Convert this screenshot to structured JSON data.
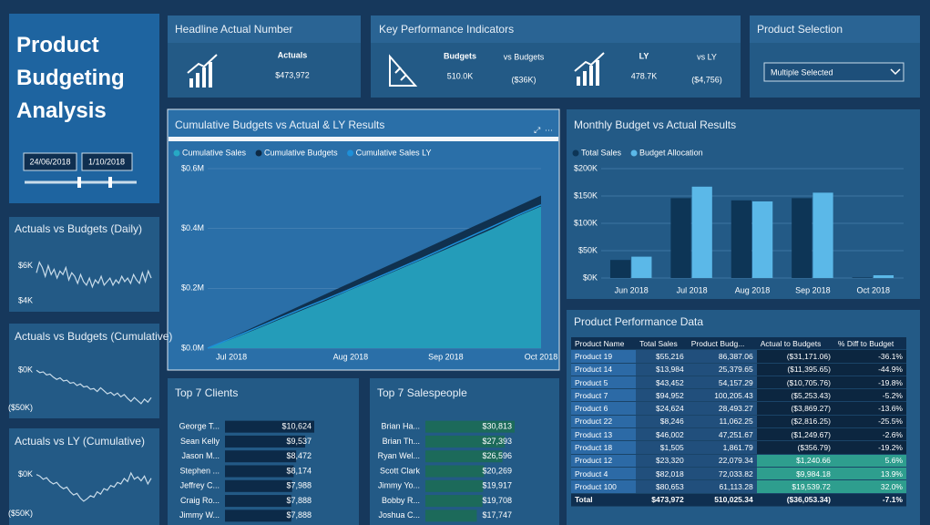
{
  "title": "Product Budgeting Analysis",
  "date_range": [
    "24/06/2018",
    "1/10/2018"
  ],
  "headline": {
    "title": "Headline Actual Number",
    "label": "Actuals",
    "value": "$473,972"
  },
  "kpi": {
    "title": "Key Performance Indicators",
    "budgets_label": "Budgets",
    "budgets_value": "510.0K",
    "vs_budgets_label": "vs Budgets",
    "vs_budgets_value": "($36K)",
    "ly_label": "LY",
    "ly_value": "478.7K",
    "vs_ly_label": "vs LY",
    "vs_ly_value": "($4,756)"
  },
  "product_selection": {
    "title": "Product Selection",
    "value": "Multiple Selected"
  },
  "chart_data": [
    {
      "type": "line",
      "title": "Actuals vs Budgets (Daily)",
      "color": "#c9dcea",
      "values": [
        5600,
        6200,
        5900,
        5400,
        6000,
        5500,
        5800,
        5300,
        5700,
        5500,
        5900,
        5200,
        5600,
        5400,
        5000,
        5500,
        5100,
        4900,
        5300,
        4800,
        5200,
        5000,
        5400,
        4900,
        5100,
        5300,
        4900,
        5200,
        5000,
        5400,
        5100,
        5300,
        5000,
        5500,
        5200,
        5000,
        5600,
        5100,
        5700,
        5300
      ],
      "ylim": [
        3700,
        6600
      ],
      "yticks": [
        {
          "value": 6000,
          "label": "$6K"
        },
        {
          "value": 4000,
          "label": "$4K"
        }
      ]
    },
    {
      "type": "line",
      "title": "Actuals vs Budgets (Cumulative)",
      "color": "#c9dcea",
      "values": [
        0,
        -3000,
        -2000,
        -6000,
        -5000,
        -9000,
        -12000,
        -10000,
        -14000,
        -13000,
        -17000,
        -16000,
        -20000,
        -18000,
        -22000,
        -21000,
        -25000,
        -24000,
        -28000,
        -23000,
        -27000,
        -31000,
        -29000,
        -33000,
        -30000,
        -35000,
        -32000,
        -37000,
        -41000,
        -36000,
        -40000,
        -44000,
        -38000,
        -42000,
        -36053
      ],
      "ylim": [
        -55000,
        10000
      ],
      "yticks": [
        {
          "value": 0,
          "label": "$0K"
        },
        {
          "value": -50000,
          "label": "($50K)"
        }
      ]
    },
    {
      "type": "line",
      "title": "Actuals vs LY (Cumulative)",
      "color": "#c9dcea",
      "values": [
        0,
        -2000,
        -6000,
        -4000,
        -9000,
        -12000,
        -10000,
        -15000,
        -18000,
        -16000,
        -22000,
        -26000,
        -24000,
        -30000,
        -34000,
        -31000,
        -27000,
        -29000,
        -22000,
        -25000,
        -18000,
        -20000,
        -14000,
        -16000,
        -10000,
        -12000,
        -5000,
        -9000,
        2000,
        -6000,
        -3000,
        -8000,
        -2000,
        -12000,
        -4756
      ],
      "ylim": [
        -55000,
        10000
      ],
      "yticks": [
        {
          "value": 0,
          "label": "$0K"
        },
        {
          "value": -50000,
          "label": "($50K)"
        }
      ]
    },
    {
      "type": "area",
      "title": "Cumulative Budgets vs Actual & LY Results",
      "categories": [
        null,
        "Jul 2018",
        null,
        null,
        null,
        null,
        "Aug 2018",
        null,
        null,
        null,
        "Sep 2018",
        null,
        null,
        null,
        "Oct 2018"
      ],
      "series": [
        {
          "name": "Cumulative Sales",
          "color": "#27a9c4",
          "area": true,
          "values": [
            0,
            30000,
            62000,
            95000,
            128000,
            160000,
            195000,
            228000,
            262000,
            296000,
            330000,
            365000,
            400000,
            440000,
            473972
          ]
        },
        {
          "name": "Cumulative Budgets",
          "color": "#0d2a45",
          "area": true,
          "values": [
            0,
            36400,
            72900,
            109300,
            145700,
            182200,
            218600,
            255000,
            291400,
            327900,
            364300,
            400700,
            437200,
            473600,
            510025
          ]
        },
        {
          "name": "Cumulative Sales LY",
          "color": "#1e90d8",
          "area": false,
          "values": [
            0,
            33000,
            66000,
            100000,
            133000,
            165000,
            198000,
            232000,
            266000,
            300000,
            336000,
            372000,
            408000,
            444000,
            478700
          ]
        }
      ],
      "ylim": [
        0,
        600000
      ],
      "yticks": [
        {
          "value": 0,
          "label": "$0.0M"
        },
        {
          "value": 200000,
          "label": "$0.2M"
        },
        {
          "value": 400000,
          "label": "$0.4M"
        },
        {
          "value": 600000,
          "label": "$0.6M"
        }
      ],
      "grid": true
    },
    {
      "type": "bar",
      "title": "Monthly Budget vs Actual Results",
      "categories": [
        "Jun 2018",
        "Jul 2018",
        "Aug 2018",
        "Sep 2018",
        "Oct 2018"
      ],
      "series": [
        {
          "name": "Total Sales",
          "color": "#0d3556",
          "values": [
            33000,
            146000,
            142000,
            146000,
            1000
          ]
        },
        {
          "name": "Budget Allocation",
          "color": "#5bb8e8",
          "values": [
            39000,
            167000,
            140000,
            156000,
            5000
          ]
        }
      ],
      "ylim": [
        0,
        200000
      ],
      "yticks": [
        {
          "value": 0,
          "label": "$0K"
        },
        {
          "value": 50000,
          "label": "$50K"
        },
        {
          "value": 100000,
          "label": "$100K"
        },
        {
          "value": 150000,
          "label": "$150K"
        },
        {
          "value": 200000,
          "label": "$200K"
        }
      ],
      "grid": true
    },
    {
      "type": "bar",
      "orientation": "horizontal",
      "title": "Top 7 Clients",
      "color": "#0c2a48",
      "categories": [
        "George T...",
        "Sean Kelly",
        "Jason M...",
        "Stephen ...",
        "Jeffrey C...",
        "Craig Ro...",
        "Jimmy W..."
      ],
      "values": [
        10624,
        9537,
        8472,
        8174,
        7988,
        7888,
        7888
      ],
      "value_labels": [
        "$10,624",
        "$9,537",
        "$8,472",
        "$8,174",
        "$7,988",
        "$7,888",
        "$7,888"
      ]
    },
    {
      "type": "bar",
      "orientation": "horizontal",
      "title": "Top 7 Salespeople",
      "color": "#1c6a5a",
      "categories": [
        "Brian Ha...",
        "Brian Th...",
        "Ryan Wel...",
        "Scott Clark",
        "Jimmy Yo...",
        "Bobby R...",
        "Joshua C..."
      ],
      "values": [
        30813,
        27393,
        26596,
        20269,
        19917,
        19708,
        17747
      ],
      "value_labels": [
        "$30,813",
        "$27,393",
        "$26,596",
        "$20,269",
        "$19,917",
        "$19,708",
        "$17,747"
      ]
    }
  ],
  "table": {
    "title": "Product Performance Data",
    "header": [
      "Product Name",
      "Total Sales",
      "Product Budg...",
      "Actual to Budgets",
      "% Diff to Budget"
    ],
    "rows": [
      [
        "Product 19",
        "$55,216",
        "86,387.06",
        "($31,171.06)",
        "-36.1%"
      ],
      [
        "Product 14",
        "$13,984",
        "25,379.65",
        "($11,395.65)",
        "-44.9%"
      ],
      [
        "Product 5",
        "$43,452",
        "54,157.29",
        "($10,705.76)",
        "-19.8%"
      ],
      [
        "Product 7",
        "$94,952",
        "100,205.43",
        "($5,253.43)",
        "-5.2%"
      ],
      [
        "Product 6",
        "$24,624",
        "28,493.27",
        "($3,869.27)",
        "-13.6%"
      ],
      [
        "Product 22",
        "$8,246",
        "11,062.25",
        "($2,816.25)",
        "-25.5%"
      ],
      [
        "Product 13",
        "$46,002",
        "47,251.67",
        "($1,249.67)",
        "-2.6%"
      ],
      [
        "Product 18",
        "$1,505",
        "1,861.79",
        "($356.79)",
        "-19.2%"
      ],
      [
        "Product 12",
        "$23,320",
        "22,079.34",
        "$1,240.66",
        "5.6%"
      ],
      [
        "Product 4",
        "$82,018",
        "72,033.82",
        "$9,984.18",
        "13.9%"
      ],
      [
        "Product 100",
        "$80,653",
        "61,113.28",
        "$19,539.72",
        "32.0%"
      ]
    ],
    "total": [
      "Total",
      "$473,972",
      "510,025.34",
      "($36,053.34)",
      "-7.1%"
    ]
  }
}
